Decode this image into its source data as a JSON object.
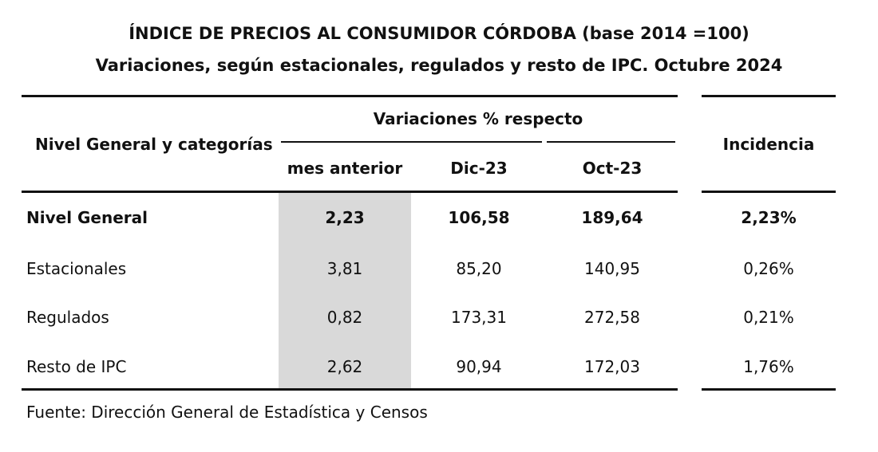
{
  "title_line1": "ÍNDICE DE PRECIOS AL CONSUMIDOR CÓRDOBA (base 2014 =100)",
  "title_line2": "Variaciones, según estacionales, regulados y resto de IPC.  Octubre 2024",
  "header": {
    "row_label": "Nivel General y categorías",
    "group_label": "Variaciones % respecto",
    "col_prev_month": "mes anterior",
    "col_dec23": "Dic-23",
    "col_oct23": "Oct-23",
    "col_incidence": "Incidencia"
  },
  "rows": [
    {
      "label": "Nivel General",
      "prev_month": "2,23",
      "dec23": "106,58",
      "oct23": "189,64",
      "incidence": "2,23%"
    },
    {
      "label": "Estacionales",
      "prev_month": "3,81",
      "dec23": "85,20",
      "oct23": "140,95",
      "incidence": "0,26%"
    },
    {
      "label": "Regulados",
      "prev_month": "0,82",
      "dec23": "173,31",
      "oct23": "272,58",
      "incidence": "0,21%"
    },
    {
      "label": "Resto de IPC",
      "prev_month": "2,62",
      "dec23": "90,94",
      "oct23": "172,03",
      "incidence": "1,76%"
    }
  ],
  "source": "Fuente: Dirección General de Estadística y Censos"
}
